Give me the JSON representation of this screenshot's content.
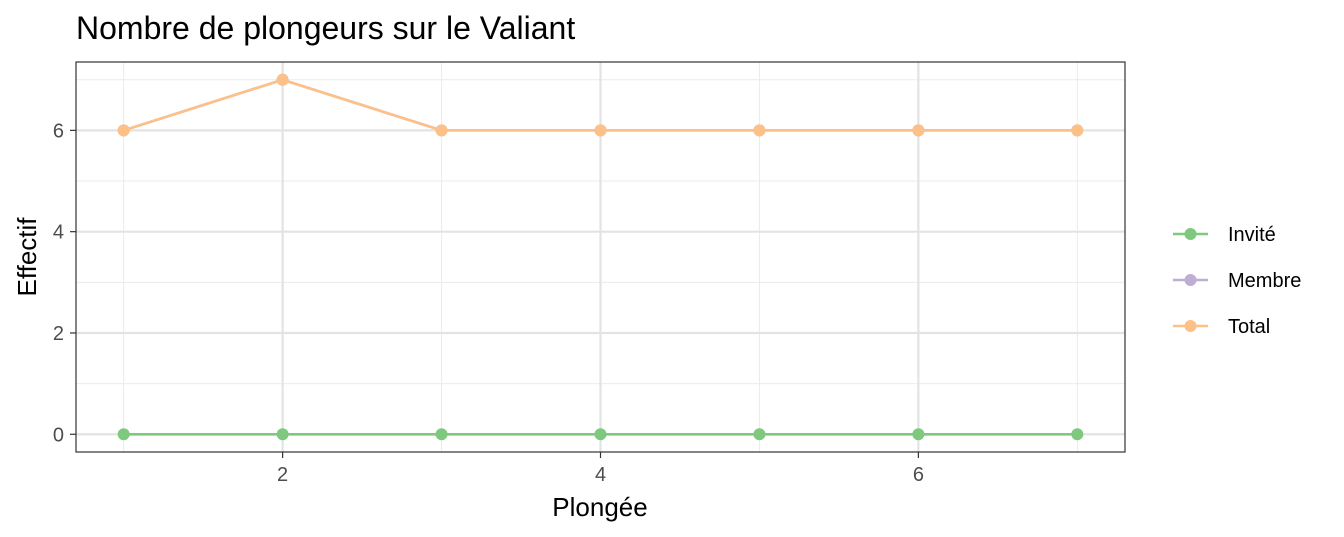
{
  "chart_data": {
    "type": "line",
    "title": "Nombre de plongeurs sur le Valiant",
    "xlabel": "Plongée",
    "ylabel": "Effectif",
    "x": [
      1,
      2,
      3,
      4,
      5,
      6,
      7
    ],
    "xlim": [
      0.7,
      7.3
    ],
    "ylim": [
      -0.35,
      7.35
    ],
    "xticks": [
      2,
      4,
      6
    ],
    "yticks": [
      0,
      2,
      4,
      6
    ],
    "xtick_labels": [
      "2",
      "4",
      "6"
    ],
    "ytick_labels": [
      "0",
      "2",
      "4",
      "6"
    ],
    "grid": true,
    "legend_position": "right",
    "series": [
      {
        "name": "Invité",
        "color": "#7fc97f",
        "values": [
          0,
          0,
          0,
          0,
          0,
          0,
          0
        ]
      },
      {
        "name": "Membre",
        "color": "#beaed4",
        "values": [
          6,
          7,
          6,
          6,
          6,
          6,
          6
        ]
      },
      {
        "name": "Total",
        "color": "#fdc086",
        "values": [
          6,
          7,
          6,
          6,
          6,
          6,
          6
        ]
      }
    ]
  }
}
